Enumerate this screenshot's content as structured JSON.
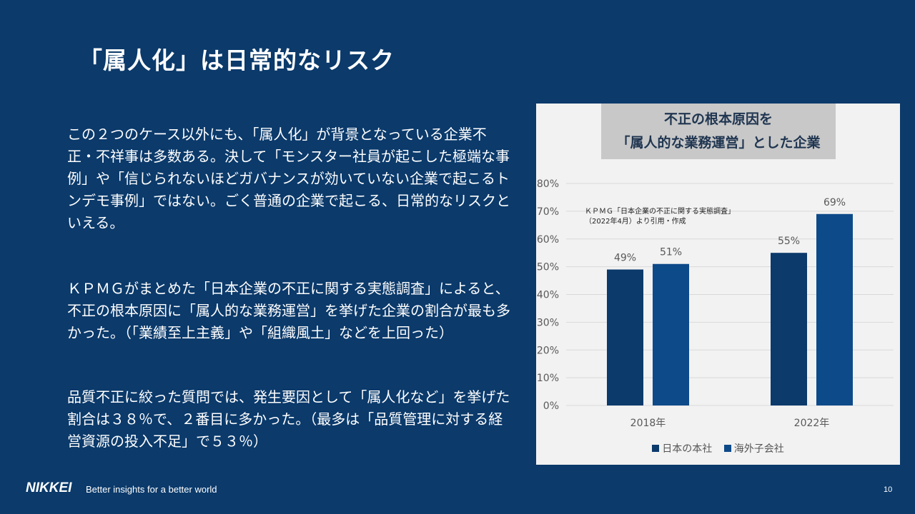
{
  "slide": {
    "title": "「属人化」は日常的なリスク",
    "paragraphs": [
      "この２つのケース以外にも、「属人化」が背景となっている企業不正・不祥事は多数ある。決して「モンスター社員が起こした極端な事例」や「信じられないほどガバナンスが効いていない企業で起こるトンデモ事例」ではない。ごく普通の企業で起こる、日常的なリスクといえる。",
      "ＫＰＭＧがまとめた「日本企業の不正に関する実態調査」によると、不正の根本原因に「属人的な業務運営」を挙げた企業の割合が最も多かった。（「業績至上主義」や「組織風土」などを上回った）",
      "品質不正に絞った質問では、発生要因として「属人化など」を挙げた割合は３８％で、２番目に多かった。（最多は「品質管理に対する経営資源の投入不足」で５３％）"
    ]
  },
  "chart_data": {
    "type": "bar",
    "title_lines": [
      "不正の根本原因を",
      "「属人的な業務運営」とした企業"
    ],
    "categories": [
      "2018年",
      "2022年"
    ],
    "series": [
      {
        "name": "日本の本社",
        "values": [
          49,
          55
        ],
        "color": "#0b3a6b"
      },
      {
        "name": "海外子会社",
        "values": [
          51,
          69
        ],
        "color": "#0d4a8a"
      }
    ],
    "value_suffix": "%",
    "ylim": [
      0,
      80
    ],
    "y_ticks": [
      0,
      10,
      20,
      30,
      40,
      50,
      60,
      70,
      80
    ],
    "grid": true,
    "legend_position": "bottom",
    "annotation_lines": [
      "ＫＰＭＧ「日本企業の不正に関する実態調査」",
      "（2022年4月）より引用・作成"
    ]
  },
  "footer": {
    "logo": "NIKKEI",
    "tagline": "Better insights for a better world",
    "page_number": "10"
  }
}
